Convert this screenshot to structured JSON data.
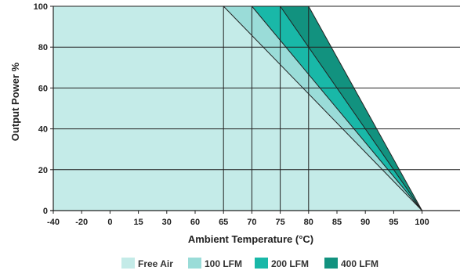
{
  "chart_data": {
    "type": "area",
    "title": "",
    "xlabel": "Ambient Temperature (°C)",
    "ylabel": "Output Power %",
    "x_tick_labels": [
      "-40",
      "-20",
      "0",
      "15",
      "30",
      "60",
      "65",
      "70",
      "75",
      "80",
      "85",
      "90",
      "95",
      "100"
    ],
    "y_ticks": [
      0,
      20,
      40,
      60,
      80,
      100
    ],
    "ylim": [
      0,
      100
    ],
    "grid": true,
    "legend_position": "bottom",
    "series": [
      {
        "name": "Free Air",
        "color": "#c4ebe8",
        "x": [
          "-40",
          "65",
          "100"
        ],
        "y": [
          100,
          100,
          0
        ]
      },
      {
        "name": "100 LFM",
        "color": "#9adcd8",
        "x": [
          "-40",
          "70",
          "100"
        ],
        "y": [
          100,
          100,
          0
        ]
      },
      {
        "name": "200 LFM",
        "color": "#19b8a8",
        "x": [
          "-40",
          "75",
          "100"
        ],
        "y": [
          100,
          100,
          0
        ]
      },
      {
        "name": "400 LFM",
        "color": "#12927f",
        "x": [
          "-40",
          "80",
          "100"
        ],
        "y": [
          100,
          100,
          0
        ]
      }
    ]
  }
}
